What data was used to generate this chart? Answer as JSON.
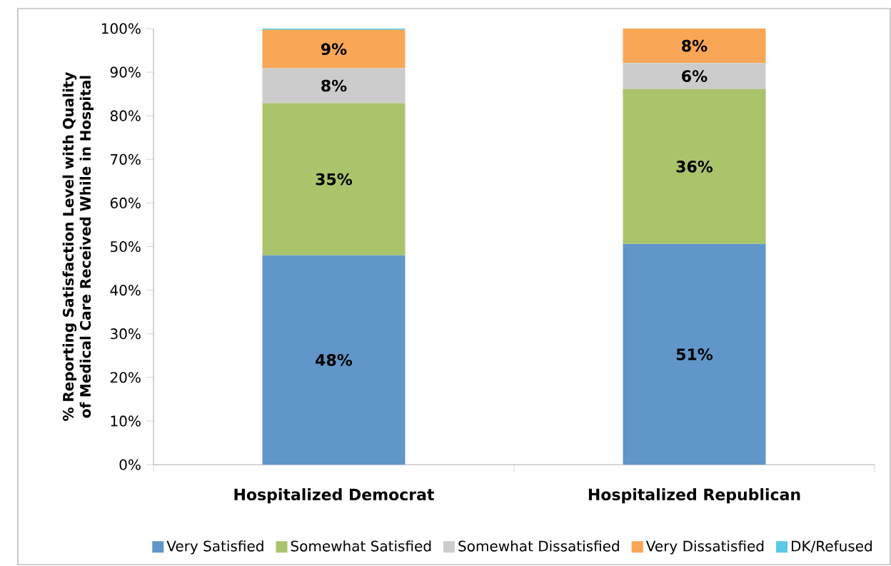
{
  "chart_data": {
    "type": "bar",
    "stacked": true,
    "ylabel": "% Reporting Satisfaction Level with Quality of Medical Care Received While in Hospital",
    "categories": [
      "Hospitalized Democrat",
      "Hospitalized Republican"
    ],
    "series": [
      {
        "name": "Very Satisfied",
        "color": "#6096c9",
        "values": [
          48,
          50.6
        ],
        "value_labels": [
          "48%",
          "51%"
        ]
      },
      {
        "name": "Somewhat Satisfied",
        "color": "#aac46b",
        "values": [
          34.9,
          35.5
        ],
        "value_labels": [
          "35%",
          "36%"
        ]
      },
      {
        "name": "Somewhat Dissatisfied",
        "color": "#cccccc",
        "values": [
          8,
          6
        ],
        "value_labels": [
          "8%",
          "6%"
        ]
      },
      {
        "name": "Very Dissatisfied",
        "color": "#f9a656",
        "values": [
          8.8,
          7.9
        ],
        "value_labels": [
          "9%",
          "8%"
        ]
      },
      {
        "name": "DK/Refused",
        "color": "#5bc8e8",
        "values": [
          0.3,
          0
        ],
        "value_labels": [
          null,
          null
        ]
      }
    ],
    "ylim": [
      0,
      100
    ],
    "yticks": [
      {
        "value": 0,
        "label": "0%"
      },
      {
        "value": 10,
        "label": "10%"
      },
      {
        "value": 20,
        "label": "20%"
      },
      {
        "value": 30,
        "label": "30%"
      },
      {
        "value": 40,
        "label": "40%"
      },
      {
        "value": 50,
        "label": "50%"
      },
      {
        "value": 60,
        "label": "60%"
      },
      {
        "value": 70,
        "label": "70%"
      },
      {
        "value": 80,
        "label": "80%"
      },
      {
        "value": 90,
        "label": "90%"
      },
      {
        "value": 100,
        "label": "100%"
      }
    ],
    "legend": "bottom"
  }
}
